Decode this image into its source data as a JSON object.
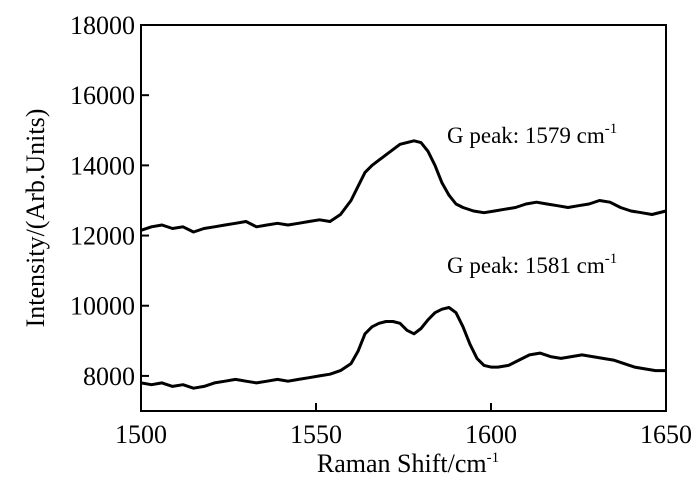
{
  "chart_data": {
    "type": "line",
    "xlabel": "Raman Shift/cm",
    "xlabel_sup": "-1",
    "ylabel": "Intensity/(Arb.Units)",
    "xlim": [
      1500,
      1650
    ],
    "ylim": [
      7000,
      18000
    ],
    "xticks": [
      "1500",
      "1550",
      "1600",
      "1650"
    ],
    "yticks": [
      "8000",
      "10000",
      "12000",
      "14000",
      "16000",
      "18000"
    ],
    "grid": false,
    "annotations": [
      {
        "text": "G peak: 1579 cm",
        "sup": "-1"
      },
      {
        "text": "G peak: 1581 cm",
        "sup": "-1"
      }
    ],
    "series": [
      {
        "x": [
          1500,
          1503,
          1506,
          1509,
          1512,
          1515,
          1518,
          1521,
          1524,
          1527,
          1530,
          1533,
          1536,
          1539,
          1542,
          1545,
          1548,
          1551,
          1554,
          1557,
          1560,
          1562,
          1564,
          1566,
          1568,
          1570,
          1572,
          1574,
          1576,
          1578,
          1580,
          1582,
          1584,
          1586,
          1588,
          1590,
          1592,
          1595,
          1598,
          1601,
          1604,
          1607,
          1610,
          1613,
          1616,
          1619,
          1622,
          1625,
          1628,
          1631,
          1634,
          1637,
          1640,
          1643,
          1646,
          1650
        ],
        "y": [
          12150,
          12250,
          12300,
          12200,
          12250,
          12100,
          12200,
          12250,
          12300,
          12350,
          12400,
          12250,
          12300,
          12350,
          12300,
          12350,
          12400,
          12450,
          12400,
          12600,
          13000,
          13400,
          13800,
          14000,
          14150,
          14300,
          14450,
          14600,
          14650,
          14700,
          14650,
          14400,
          14000,
          13500,
          13150,
          12900,
          12800,
          12700,
          12650,
          12700,
          12750,
          12800,
          12900,
          12950,
          12900,
          12850,
          12800,
          12850,
          12900,
          13000,
          12950,
          12800,
          12700,
          12650,
          12600,
          12700
        ]
      },
      {
        "x": [
          1500,
          1503,
          1506,
          1509,
          1512,
          1515,
          1518,
          1521,
          1524,
          1527,
          1530,
          1533,
          1536,
          1539,
          1542,
          1545,
          1548,
          1551,
          1554,
          1557,
          1560,
          1562,
          1564,
          1566,
          1568,
          1570,
          1572,
          1574,
          1576,
          1578,
          1580,
          1582,
          1584,
          1586,
          1588,
          1590,
          1592,
          1594,
          1596,
          1598,
          1600,
          1602,
          1605,
          1608,
          1611,
          1614,
          1617,
          1620,
          1623,
          1626,
          1629,
          1632,
          1635,
          1638,
          1641,
          1644,
          1647,
          1650
        ],
        "y": [
          7800,
          7750,
          7800,
          7700,
          7750,
          7650,
          7700,
          7800,
          7850,
          7900,
          7850,
          7800,
          7850,
          7900,
          7850,
          7900,
          7950,
          8000,
          8050,
          8150,
          8350,
          8700,
          9200,
          9400,
          9500,
          9550,
          9550,
          9500,
          9300,
          9200,
          9350,
          9600,
          9800,
          9900,
          9950,
          9800,
          9400,
          8900,
          8500,
          8300,
          8250,
          8250,
          8300,
          8450,
          8600,
          8650,
          8550,
          8500,
          8550,
          8600,
          8550,
          8500,
          8450,
          8350,
          8250,
          8200,
          8150,
          8150
        ]
      }
    ]
  }
}
